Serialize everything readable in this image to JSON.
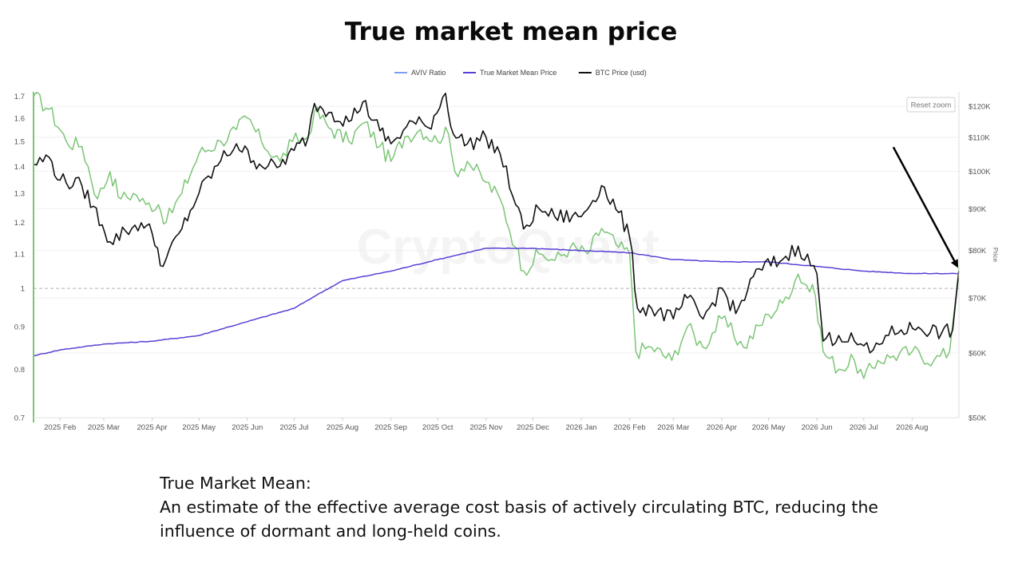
{
  "title": "True market mean price",
  "description": {
    "heading": "True Market Mean:",
    "body": "An estimate of the effective average cost basis of actively circulating BTC, reducing the influence of dormant and long-held coins."
  },
  "chart": {
    "watermark": "CryptoQuant",
    "reset_zoom_label": "Reset zoom",
    "right_axis_title": "Price"
  },
  "chart_data": {
    "type": "line",
    "legend_position": "top-center",
    "grid": true,
    "x_ticks": [
      "2025 Feb",
      "2025 Mar",
      "2025 Apr",
      "2025 May",
      "2025 Jun",
      "2025 Jul",
      "2025 Aug",
      "2025 Sep",
      "2025 Oct",
      "2025 Nov",
      "2025 Dec",
      "2026 Jan",
      "2026 Feb",
      "2026 Mar",
      "2026 Apr",
      "2026 May",
      "2026 Jun",
      "2026 Jul",
      "2026 Aug"
    ],
    "x_range": [
      "2025-01-15",
      "2026-08-31"
    ],
    "y_left": {
      "ticks": [
        0.7,
        0.8,
        0.9,
        1,
        1.1,
        1.2,
        1.3,
        1.4,
        1.5,
        1.6,
        1.7
      ],
      "range": [
        0.7,
        1.72
      ],
      "reference_line": 1,
      "scale": "log"
    },
    "y_right": {
      "ticks": [
        "$50K",
        "$60K",
        "$70K",
        "$80K",
        "$90K",
        "$100K",
        "$110K",
        "$120K"
      ],
      "tick_values": [
        50000,
        60000,
        70000,
        80000,
        90000,
        100000,
        110000,
        120000
      ],
      "range": [
        50000,
        125000
      ],
      "title": "Price",
      "scale": "log"
    },
    "series": [
      {
        "name": "AVIV Ratio",
        "axis": "left",
        "color": "#7cc576",
        "legend_color": "#7b9cf0",
        "note_colors": {
          "high": "#e8c15a",
          "low": "#8a8a8a"
        },
        "points": [
          [
            "2025-01-15",
            1.7
          ],
          [
            "2025-01-25",
            1.64
          ],
          [
            "2025-02-05",
            1.5
          ],
          [
            "2025-02-15",
            1.48
          ],
          [
            "2025-02-25",
            1.28
          ],
          [
            "2025-03-05",
            1.38
          ],
          [
            "2025-03-12",
            1.28
          ],
          [
            "2025-03-20",
            1.3
          ],
          [
            "2025-03-28",
            1.26
          ],
          [
            "2025-04-05",
            1.26
          ],
          [
            "2025-04-10",
            1.2
          ],
          [
            "2025-04-20",
            1.3
          ],
          [
            "2025-05-01",
            1.45
          ],
          [
            "2025-05-15",
            1.5
          ],
          [
            "2025-05-25",
            1.55
          ],
          [
            "2025-06-01",
            1.6
          ],
          [
            "2025-06-10",
            1.5
          ],
          [
            "2025-06-22",
            1.42
          ],
          [
            "2025-06-30",
            1.5
          ],
          [
            "2025-07-10",
            1.52
          ],
          [
            "2025-07-14",
            1.63
          ],
          [
            "2025-07-25",
            1.55
          ],
          [
            "2025-08-05",
            1.5
          ],
          [
            "2025-08-15",
            1.58
          ],
          [
            "2025-08-25",
            1.48
          ],
          [
            "2025-09-01",
            1.42
          ],
          [
            "2025-09-10",
            1.52
          ],
          [
            "2025-09-20",
            1.55
          ],
          [
            "2025-10-01",
            1.5
          ],
          [
            "2025-10-06",
            1.56
          ],
          [
            "2025-10-12",
            1.38
          ],
          [
            "2025-10-20",
            1.42
          ],
          [
            "2025-11-01",
            1.34
          ],
          [
            "2025-11-10",
            1.28
          ],
          [
            "2025-11-20",
            1.12
          ],
          [
            "2025-11-25",
            1.05
          ],
          [
            "2025-12-05",
            1.1
          ],
          [
            "2025-12-15",
            1.08
          ],
          [
            "2025-12-25",
            1.12
          ],
          [
            "2026-01-05",
            1.1
          ],
          [
            "2026-01-14",
            1.18
          ],
          [
            "2026-01-25",
            1.12
          ],
          [
            "2026-02-01",
            1.1
          ],
          [
            "2026-02-05",
            0.84
          ],
          [
            "2026-02-15",
            0.85
          ],
          [
            "2026-02-28",
            0.82
          ],
          [
            "2026-03-10",
            0.9
          ],
          [
            "2026-03-20",
            0.85
          ],
          [
            "2026-04-01",
            0.92
          ],
          [
            "2026-04-15",
            0.85
          ],
          [
            "2026-05-01",
            0.93
          ],
          [
            "2026-05-10",
            0.96
          ],
          [
            "2026-05-20",
            1.04
          ],
          [
            "2026-05-31",
            0.98
          ],
          [
            "2026-06-05",
            0.84
          ],
          [
            "2026-06-15",
            0.8
          ],
          [
            "2026-06-25",
            0.82
          ],
          [
            "2026-07-01",
            0.78
          ],
          [
            "2026-07-10",
            0.82
          ],
          [
            "2026-07-20",
            0.83
          ],
          [
            "2026-08-01",
            0.84
          ],
          [
            "2026-08-15",
            0.82
          ],
          [
            "2026-08-25",
            0.84
          ],
          [
            "2026-08-31",
            1.06
          ]
        ]
      },
      {
        "name": "True Market Mean Price",
        "axis": "right",
        "color": "#5a3fd6",
        "points": [
          [
            "2025-01-15",
            59500
          ],
          [
            "2025-02-01",
            60500
          ],
          [
            "2025-03-01",
            61500
          ],
          [
            "2025-04-01",
            62000
          ],
          [
            "2025-05-01",
            63000
          ],
          [
            "2025-06-01",
            65500
          ],
          [
            "2025-07-01",
            68000
          ],
          [
            "2025-07-15",
            70500
          ],
          [
            "2025-08-01",
            73500
          ],
          [
            "2025-09-01",
            75500
          ],
          [
            "2025-10-01",
            78000
          ],
          [
            "2025-11-01",
            80500
          ],
          [
            "2025-12-01",
            80500
          ],
          [
            "2026-01-01",
            80000
          ],
          [
            "2026-02-01",
            79500
          ],
          [
            "2026-03-01",
            78000
          ],
          [
            "2026-04-01",
            77500
          ],
          [
            "2026-05-01",
            77500
          ],
          [
            "2026-06-01",
            76500
          ],
          [
            "2026-07-01",
            75500
          ],
          [
            "2026-08-01",
            75000
          ],
          [
            "2026-08-31",
            75000
          ]
        ]
      },
      {
        "name": "BTC Price (usd)",
        "axis": "right",
        "color": "#111111",
        "points": [
          [
            "2025-01-15",
            102000
          ],
          [
            "2025-01-25",
            104000
          ],
          [
            "2025-02-01",
            97500
          ],
          [
            "2025-02-15",
            96000
          ],
          [
            "2025-02-28",
            86000
          ],
          [
            "2025-03-05",
            82000
          ],
          [
            "2025-03-15",
            84500
          ],
          [
            "2025-03-25",
            86500
          ],
          [
            "2025-04-01",
            84000
          ],
          [
            "2025-04-08",
            76500
          ],
          [
            "2025-04-20",
            85000
          ],
          [
            "2025-05-01",
            94000
          ],
          [
            "2025-05-15",
            103000
          ],
          [
            "2025-05-25",
            108000
          ],
          [
            "2025-06-05",
            103000
          ],
          [
            "2025-06-20",
            101000
          ],
          [
            "2025-07-01",
            106000
          ],
          [
            "2025-07-10",
            110000
          ],
          [
            "2025-07-14",
            121000
          ],
          [
            "2025-07-25",
            118000
          ],
          [
            "2025-08-05",
            115000
          ],
          [
            "2025-08-14",
            121500
          ],
          [
            "2025-08-25",
            112000
          ],
          [
            "2025-09-01",
            108000
          ],
          [
            "2025-09-15",
            115000
          ],
          [
            "2025-09-25",
            113000
          ],
          [
            "2025-10-06",
            124500
          ],
          [
            "2025-10-11",
            111000
          ],
          [
            "2025-10-20",
            108000
          ],
          [
            "2025-11-01",
            110000
          ],
          [
            "2025-11-10",
            105000
          ],
          [
            "2025-11-20",
            91000
          ],
          [
            "2025-11-25",
            85000
          ],
          [
            "2025-12-05",
            90000
          ],
          [
            "2025-12-15",
            88000
          ],
          [
            "2026-01-01",
            88000
          ],
          [
            "2026-01-14",
            96000
          ],
          [
            "2026-01-25",
            89000
          ],
          [
            "2026-02-01",
            83000
          ],
          [
            "2026-02-06",
            68000
          ],
          [
            "2026-02-15",
            68000
          ],
          [
            "2026-03-01",
            66000
          ],
          [
            "2026-03-10",
            70000
          ],
          [
            "2026-03-20",
            66000
          ],
          [
            "2026-04-01",
            72000
          ],
          [
            "2026-04-10",
            67000
          ],
          [
            "2026-04-25",
            76000
          ],
          [
            "2026-05-10",
            78000
          ],
          [
            "2026-05-20",
            81000
          ],
          [
            "2026-06-01",
            75000
          ],
          [
            "2026-06-05",
            62000
          ],
          [
            "2026-06-15",
            63000
          ],
          [
            "2026-06-25",
            62000
          ],
          [
            "2026-07-05",
            60000
          ],
          [
            "2026-07-15",
            63000
          ],
          [
            "2026-07-25",
            64000
          ],
          [
            "2026-08-05",
            64500
          ],
          [
            "2026-08-20",
            63500
          ],
          [
            "2026-08-27",
            64000
          ],
          [
            "2026-08-31",
            75500
          ]
        ]
      }
    ],
    "annotations": [
      {
        "type": "arrow",
        "from": [
          "2026-07-20",
          107000
        ],
        "to": [
          "2026-08-30",
          76500
        ]
      }
    ]
  }
}
